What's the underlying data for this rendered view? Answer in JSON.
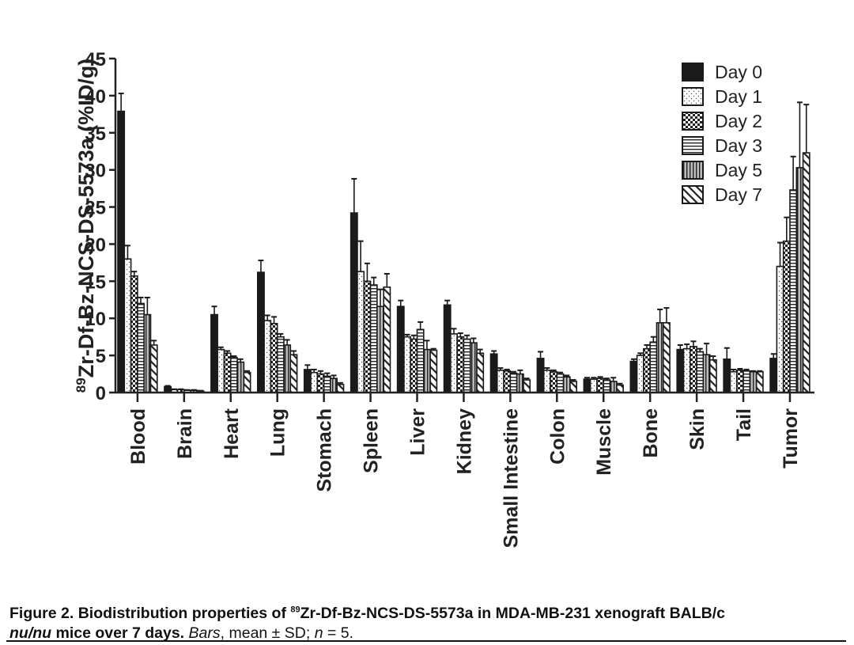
{
  "chart_data": {
    "type": "bar",
    "title": "",
    "ylabel_sup": "89",
    "ylabel": "Zr-Df-Bz-NCS-DS-5573a (%ID/g)",
    "xlabel": "",
    "ylim": [
      0,
      45
    ],
    "yticks": [
      0,
      5,
      10,
      15,
      20,
      25,
      30,
      35,
      40,
      45
    ],
    "grid": false,
    "legend_position": "top-right",
    "categories": [
      "Blood",
      "Brain",
      "Heart",
      "Lung",
      "Stomach",
      "Spleen",
      "Liver",
      "Kidney",
      "Small Intestine",
      "Colon",
      "Muscle",
      "Bone",
      "Skin",
      "Tail",
      "Tumor"
    ],
    "series": [
      {
        "name": "Day 0",
        "pattern": "solid",
        "values": [
          37.9,
          0.8,
          10.5,
          16.2,
          3.1,
          24.2,
          11.6,
          11.8,
          5.2,
          4.6,
          1.8,
          4.2,
          5.8,
          4.5,
          4.6
        ],
        "errors": [
          2.4,
          0.1,
          1.1,
          1.6,
          0.6,
          4.6,
          0.8,
          0.6,
          0.4,
          0.9,
          0.2,
          0.3,
          0.6,
          1.5,
          0.6
        ]
      },
      {
        "name": "Day 1",
        "pattern": "dots",
        "values": [
          18.0,
          0.4,
          5.8,
          9.7,
          2.7,
          16.3,
          7.5,
          7.9,
          3.0,
          3.0,
          1.8,
          5.0,
          5.9,
          2.8,
          17.0
        ],
        "errors": [
          1.8,
          0.05,
          0.3,
          0.7,
          0.4,
          4.1,
          0.3,
          0.7,
          0.3,
          0.3,
          0.2,
          0.3,
          0.6,
          0.3,
          3.2
        ]
      },
      {
        "name": "Day 2",
        "pattern": "checker",
        "values": [
          15.7,
          0.4,
          5.3,
          9.3,
          2.5,
          15.0,
          7.2,
          7.5,
          2.9,
          2.8,
          1.9,
          5.9,
          6.2,
          3.0,
          20.4
        ],
        "errors": [
          0.6,
          0.05,
          0.3,
          0.9,
          0.4,
          2.4,
          0.5,
          0.5,
          0.2,
          0.2,
          0.2,
          0.5,
          0.7,
          0.2,
          3.2
        ]
      },
      {
        "name": "Day 3",
        "pattern": "hlines",
        "values": [
          12.0,
          0.3,
          4.7,
          7.5,
          2.2,
          14.5,
          8.5,
          7.2,
          2.6,
          2.5,
          1.7,
          6.8,
          5.5,
          2.9,
          27.3
        ],
        "errors": [
          0.8,
          0.05,
          0.2,
          0.4,
          0.4,
          1.0,
          1.0,
          0.5,
          0.2,
          0.2,
          0.2,
          0.7,
          0.4,
          0.2,
          4.5
        ]
      },
      {
        "name": "Day 5",
        "pattern": "vlines",
        "values": [
          10.5,
          0.3,
          4.1,
          6.4,
          1.9,
          11.6,
          5.8,
          6.7,
          2.5,
          2.1,
          1.5,
          9.4,
          5.1,
          2.8,
          30.3
        ],
        "errors": [
          2.3,
          0.05,
          0.4,
          0.7,
          0.4,
          2.3,
          1.2,
          0.6,
          0.5,
          0.2,
          0.5,
          1.8,
          1.5,
          0.1,
          8.8
        ]
      },
      {
        "name": "Day 7",
        "pattern": "diagonal",
        "values": [
          6.4,
          0.2,
          2.7,
          5.1,
          1.1,
          14.2,
          5.7,
          5.3,
          1.7,
          1.5,
          1.0,
          9.4,
          4.4,
          2.8,
          32.3
        ],
        "errors": [
          0.6,
          0.05,
          0.2,
          0.5,
          0.2,
          1.8,
          0.2,
          0.5,
          0.2,
          0.2,
          0.2,
          2.0,
          0.5,
          0.1,
          6.5
        ]
      }
    ]
  },
  "caption": {
    "label": "Figure 2.",
    "title_pre": " Biodistribution properties of ",
    "title_sup": "89",
    "title_post": "Zr-Df-Bz-NCS-DS-5573a in MDA-MB-231 xenograft BALB/c ",
    "nu": "nu/nu",
    "title_end": " mice over 7 days.",
    "bars": "Bars",
    "rest1": ", mean ± SD; ",
    "n": "n",
    "rest2": " = 5."
  }
}
